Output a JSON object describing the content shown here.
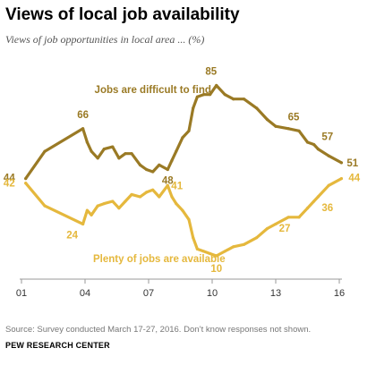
{
  "title": "Views of local job availability",
  "subtitle": "Views of job opportunities in local area ... (%)",
  "source": "Source: Survey conducted March 17-27, 2016. Don’t know responses not shown.",
  "brand": "PEW RESEARCH CENTER",
  "chart_data": {
    "type": "line",
    "x_ticks": [
      "01",
      "04",
      "07",
      "10",
      "13",
      "16"
    ],
    "x_tick_values": [
      2001,
      2004,
      2007,
      2010,
      2013,
      2016
    ],
    "xlim": [
      2001,
      2016
    ],
    "grid": false,
    "series": [
      {
        "name": "Jobs are difficult to find",
        "color": "#9a7a25",
        "points": [
          [
            2001.2,
            44
          ],
          [
            2002.1,
            56
          ],
          [
            2003.9,
            66
          ],
          [
            2004.1,
            60
          ],
          [
            2004.3,
            56
          ],
          [
            2004.6,
            53
          ],
          [
            2004.9,
            57
          ],
          [
            2005.3,
            58
          ],
          [
            2005.6,
            53
          ],
          [
            2005.9,
            55
          ],
          [
            2006.2,
            55
          ],
          [
            2006.6,
            50
          ],
          [
            2006.9,
            48
          ],
          [
            2007.2,
            47
          ],
          [
            2007.5,
            50
          ],
          [
            2007.9,
            48
          ],
          [
            2008.1,
            52
          ],
          [
            2008.3,
            56
          ],
          [
            2008.6,
            62
          ],
          [
            2008.9,
            65
          ],
          [
            2009.1,
            75
          ],
          [
            2009.3,
            80
          ],
          [
            2009.6,
            81
          ],
          [
            2009.9,
            81
          ],
          [
            2010.2,
            85
          ],
          [
            2010.6,
            81
          ],
          [
            2011.0,
            79
          ],
          [
            2011.5,
            79
          ],
          [
            2012.1,
            75
          ],
          [
            2012.6,
            70
          ],
          [
            2013.0,
            67
          ],
          [
            2013.6,
            66
          ],
          [
            2014.1,
            65
          ],
          [
            2014.5,
            60
          ],
          [
            2014.8,
            59
          ],
          [
            2015.0,
            57
          ],
          [
            2015.5,
            54
          ],
          [
            2016.1,
            51
          ]
        ],
        "labels": [
          {
            "x": 2001.2,
            "y": 44,
            "text": "44"
          },
          {
            "x": 2003.9,
            "y": 66,
            "text": "66"
          },
          {
            "x": 2007.9,
            "y": 48,
            "text": "48"
          },
          {
            "x": 2010.2,
            "y": 85,
            "text": "85"
          },
          {
            "x": 2014.1,
            "y": 65,
            "text": "65"
          },
          {
            "x": 2015.0,
            "y": 57,
            "text": "57"
          },
          {
            "x": 2016.1,
            "y": 51,
            "text": "51"
          }
        ]
      },
      {
        "name": "Plenty of jobs are available",
        "color": "#e5b83d",
        "points": [
          [
            2001.2,
            42
          ],
          [
            2002.1,
            32
          ],
          [
            2003.9,
            24
          ],
          [
            2004.1,
            30
          ],
          [
            2004.3,
            28
          ],
          [
            2004.6,
            32
          ],
          [
            2004.9,
            33
          ],
          [
            2005.3,
            34
          ],
          [
            2005.6,
            31
          ],
          [
            2005.9,
            34
          ],
          [
            2006.2,
            37
          ],
          [
            2006.6,
            36
          ],
          [
            2006.9,
            38
          ],
          [
            2007.2,
            39
          ],
          [
            2007.5,
            36
          ],
          [
            2007.9,
            41
          ],
          [
            2008.1,
            36
          ],
          [
            2008.3,
            33
          ],
          [
            2008.6,
            30
          ],
          [
            2008.9,
            26
          ],
          [
            2009.1,
            18
          ],
          [
            2009.3,
            13
          ],
          [
            2009.6,
            12
          ],
          [
            2009.9,
            11
          ],
          [
            2010.2,
            10
          ],
          [
            2010.6,
            12
          ],
          [
            2011.0,
            14
          ],
          [
            2011.5,
            15
          ],
          [
            2012.1,
            18
          ],
          [
            2012.6,
            22
          ],
          [
            2013.0,
            24
          ],
          [
            2013.6,
            27
          ],
          [
            2014.1,
            27
          ],
          [
            2014.5,
            31
          ],
          [
            2014.8,
            34
          ],
          [
            2015.0,
            36
          ],
          [
            2015.5,
            41
          ],
          [
            2016.1,
            44
          ]
        ],
        "labels": [
          {
            "x": 2001.2,
            "y": 42,
            "text": "42"
          },
          {
            "x": 2003.9,
            "y": 24,
            "text": "24"
          },
          {
            "x": 2007.9,
            "y": 41,
            "text": "41"
          },
          {
            "x": 2010.2,
            "y": 10,
            "text": "10"
          },
          {
            "x": 2014.1,
            "y": 27,
            "text": "27"
          },
          {
            "x": 2015.0,
            "y": 36,
            "text": "36"
          },
          {
            "x": 2016.1,
            "y": 44,
            "text": "44"
          }
        ]
      }
    ]
  }
}
